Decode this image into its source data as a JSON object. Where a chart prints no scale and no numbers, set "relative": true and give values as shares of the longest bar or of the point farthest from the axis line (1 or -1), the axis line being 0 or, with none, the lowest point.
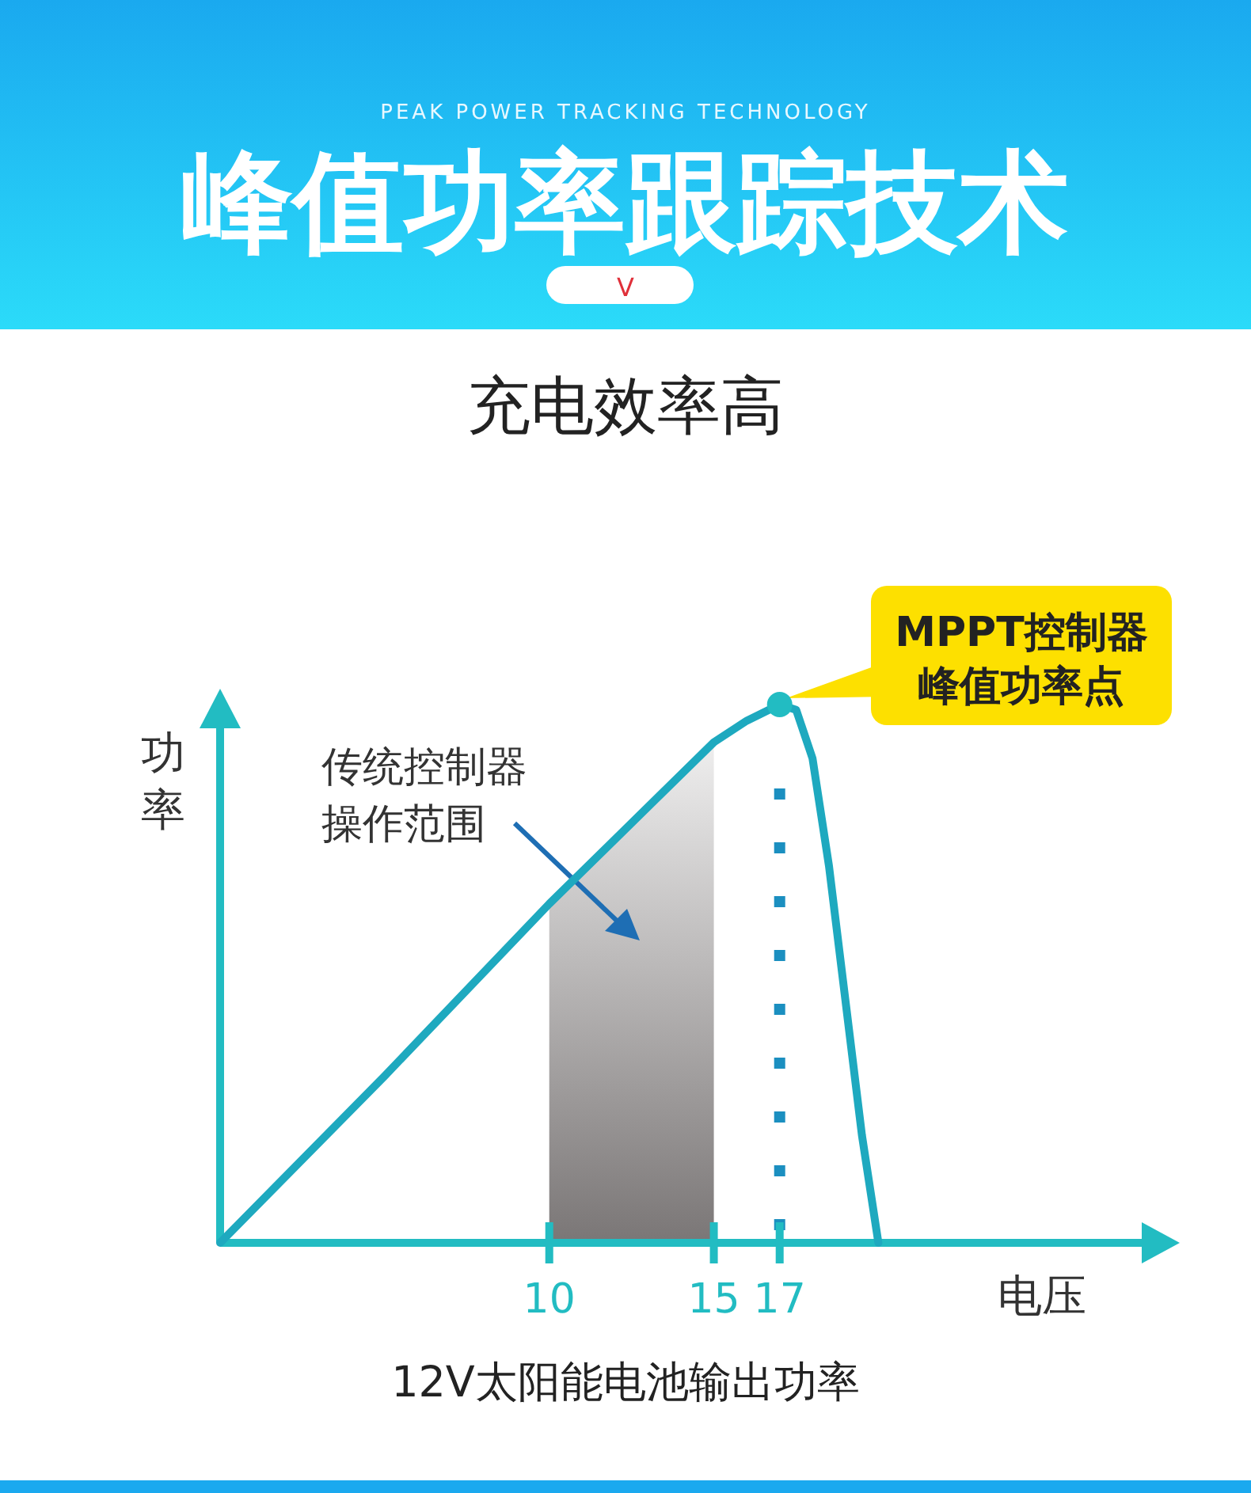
{
  "chart_data": {
    "type": "line",
    "title": "峰值功率跟踪技术",
    "subtitle": "充电效率高",
    "xlabel": "电压",
    "ylabel": "功率",
    "relative": true,
    "x": [
      0,
      5,
      10,
      15,
      16,
      17,
      17.5,
      18,
      18.5,
      19,
      19.5,
      20
    ],
    "series": [
      {
        "color": "#1ea9bf",
        "values": [
          0,
          0.31,
          0.63,
          0.93,
          0.97,
          1,
          0.99,
          0.9,
          0.7,
          0.45,
          0.2,
          0
        ]
      }
    ],
    "xlim": [
      0,
      28
    ],
    "xticks": [
      10,
      15,
      17
    ],
    "bands": [
      {
        "axis": "x",
        "from": 10,
        "to": 15,
        "label": "传统控制器操作范围",
        "color": "#7a7676"
      }
    ],
    "ref_lines": [
      {
        "axis": "x",
        "value": 17,
        "line_style": "dotted",
        "color": "#1b8fc0"
      }
    ],
    "annotations": [
      "PEAK POWER TRACKING TECHNOLOGY",
      "V",
      {
        "text": "MPPT控制器峰值功率点",
        "x": 17,
        "y": 1
      },
      "12V太阳能电池输出功率"
    ],
    "line_style": "solid"
  }
}
